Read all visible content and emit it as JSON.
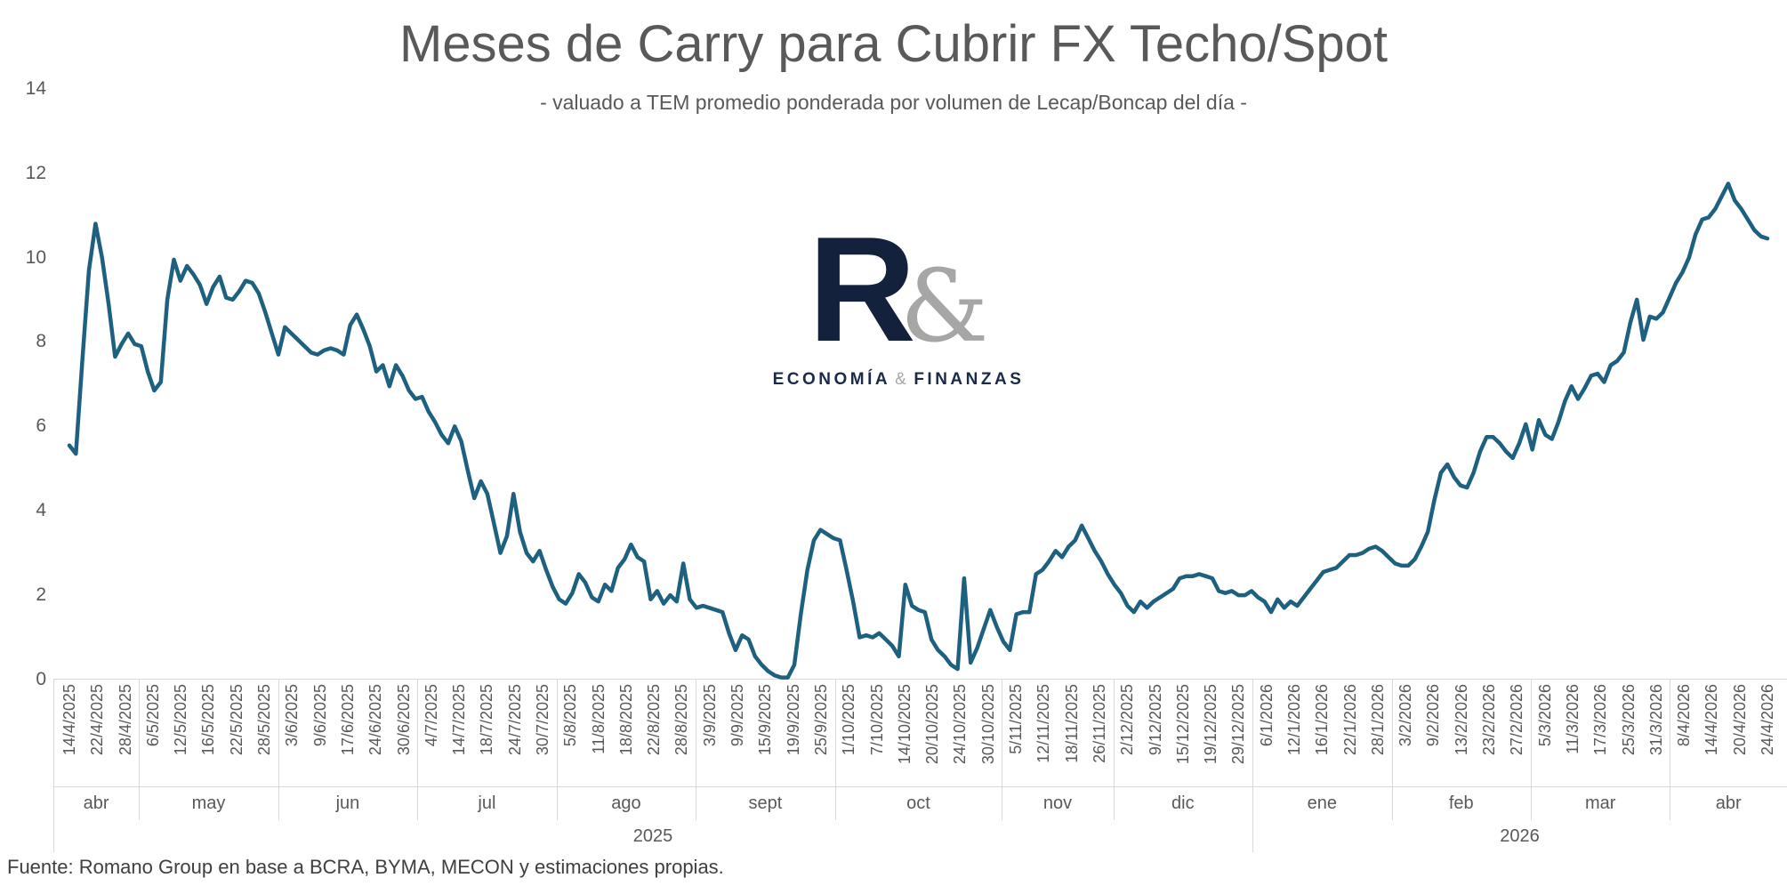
{
  "title": "Meses de Carry para Cubrir FX Techo/Spot",
  "subtitle": "- valuado a TEM promedio ponderada por volumen de Lecap/Boncap del día -",
  "source": "Fuente: Romano Group en base a BCRA, BYMA, MECON y estimaciones propias.",
  "logo": {
    "letter": "R",
    "ampersand": "&",
    "caption_left": "ECONOMÍA",
    "caption_amp": "&",
    "caption_right": "FINANZAS"
  },
  "colors": {
    "line": "#1e6080",
    "text": "#595959",
    "grid": "#d9d9d9",
    "logo_navy": "#14213d",
    "logo_gray": "#a6a6a6",
    "source_text": "#3f3f3f"
  },
  "chart_data": {
    "type": "line",
    "title": "Meses de Carry para Cubrir FX Techo/Spot",
    "xlabel": "",
    "ylabel": "",
    "ylim": [
      0,
      14
    ],
    "y_ticks": [
      0,
      2,
      4,
      6,
      8,
      10,
      12,
      14
    ],
    "grid": "off",
    "legend": "none",
    "x_tick_labels": [
      "14/4/2025",
      "22/4/2025",
      "28/4/2025",
      "6/5/2025",
      "12/5/2025",
      "16/5/2025",
      "22/5/2025",
      "28/5/2025",
      "3/6/2025",
      "9/6/2025",
      "17/6/2025",
      "24/6/2025",
      "30/6/2025",
      "4/7/2025",
      "14/7/2025",
      "18/7/2025",
      "24/7/2025",
      "30/7/2025",
      "5/8/2025",
      "11/8/2025",
      "18/8/2025",
      "22/8/2025",
      "28/8/2025",
      "3/9/2025",
      "9/9/2025",
      "15/9/2025",
      "19/9/2025",
      "25/9/2025",
      "1/10/2025",
      "7/10/2025",
      "14/10/2025",
      "20/10/2025",
      "24/10/2025",
      "30/10/2025",
      "5/11/2025",
      "12/11/2025",
      "18/11/2025",
      "26/11/2025",
      "2/12/2025",
      "9/12/2025",
      "15/12/2025",
      "19/12/2025",
      "29/12/2025",
      "6/1/2026",
      "12/1/2026",
      "16/1/2026",
      "22/1/2026",
      "28/1/2026",
      "3/2/2026",
      "9/2/2026",
      "13/2/2026",
      "23/2/2026",
      "27/2/2026",
      "5/3/2026",
      "11/3/2026",
      "17/3/2026",
      "25/3/2026",
      "31/3/2026",
      "8/4/2026",
      "14/4/2026",
      "20/4/2026",
      "24/4/2026"
    ],
    "month_groups": [
      {
        "label": "abr",
        "ticks": 3
      },
      {
        "label": "may",
        "ticks": 5
      },
      {
        "label": "jun",
        "ticks": 5
      },
      {
        "label": "jul",
        "ticks": 5
      },
      {
        "label": "ago",
        "ticks": 5
      },
      {
        "label": "sept",
        "ticks": 5
      },
      {
        "label": "oct",
        "ticks": 6
      },
      {
        "label": "nov",
        "ticks": 4
      },
      {
        "label": "dic",
        "ticks": 5
      },
      {
        "label": "ene",
        "ticks": 5
      },
      {
        "label": "feb",
        "ticks": 5
      },
      {
        "label": "mar",
        "ticks": 5
      },
      {
        "label": "abr",
        "ticks": 4
      }
    ],
    "year_groups": [
      {
        "label": "2025",
        "months": 9,
        "ticks": 43
      },
      {
        "label": "2026",
        "months": 4,
        "ticks": 19
      }
    ],
    "values": [
      5.55,
      5.35,
      7.6,
      9.7,
      10.8,
      10.0,
      8.9,
      7.65,
      7.95,
      8.2,
      7.95,
      7.9,
      7.3,
      6.85,
      7.05,
      9.0,
      9.95,
      9.45,
      9.8,
      9.6,
      9.35,
      8.9,
      9.3,
      9.55,
      9.05,
      9.0,
      9.2,
      9.45,
      9.4,
      9.15,
      8.7,
      8.2,
      7.7,
      8.35,
      8.2,
      8.05,
      7.9,
      7.75,
      7.7,
      7.8,
      7.85,
      7.8,
      7.7,
      8.4,
      8.65,
      8.3,
      7.9,
      7.3,
      7.45,
      6.95,
      7.45,
      7.2,
      6.85,
      6.65,
      6.7,
      6.35,
      6.1,
      5.8,
      5.6,
      6.0,
      5.65,
      4.95,
      4.3,
      4.7,
      4.4,
      3.7,
      3.0,
      3.4,
      4.4,
      3.5,
      3.0,
      2.8,
      3.05,
      2.6,
      2.2,
      1.9,
      1.8,
      2.05,
      2.5,
      2.3,
      1.95,
      1.85,
      2.25,
      2.1,
      2.65,
      2.85,
      3.2,
      2.9,
      2.8,
      1.9,
      2.1,
      1.8,
      2.0,
      1.85,
      2.75,
      1.9,
      1.7,
      1.75,
      1.7,
      1.65,
      1.6,
      1.1,
      0.7,
      1.05,
      0.95,
      0.55,
      0.35,
      0.2,
      0.1,
      0.05,
      0.05,
      0.35,
      1.55,
      2.6,
      3.3,
      3.55,
      3.45,
      3.35,
      3.3,
      2.6,
      1.85,
      1.0,
      1.05,
      1.0,
      1.1,
      0.95,
      0.8,
      0.55,
      2.25,
      1.75,
      1.65,
      1.6,
      0.95,
      0.7,
      0.55,
      0.35,
      0.25,
      2.4,
      0.4,
      0.75,
      1.2,
      1.65,
      1.25,
      0.9,
      0.7,
      1.55,
      1.6,
      1.6,
      2.5,
      2.6,
      2.8,
      3.05,
      2.9,
      3.15,
      3.3,
      3.65,
      3.35,
      3.05,
      2.8,
      2.5,
      2.25,
      2.05,
      1.75,
      1.6,
      1.85,
      1.7,
      1.85,
      1.95,
      2.05,
      2.15,
      2.4,
      2.45,
      2.45,
      2.5,
      2.45,
      2.4,
      2.1,
      2.05,
      2.1,
      2.0,
      2.0,
      2.1,
      1.95,
      1.85,
      1.6,
      1.9,
      1.7,
      1.85,
      1.75,
      1.95,
      2.15,
      2.35,
      2.55,
      2.6,
      2.65,
      2.8,
      2.95,
      2.95,
      3.0,
      3.1,
      3.15,
      3.05,
      2.9,
      2.75,
      2.7,
      2.7,
      2.85,
      3.15,
      3.5,
      4.25,
      4.9,
      5.1,
      4.8,
      4.6,
      4.55,
      4.9,
      5.4,
      5.75,
      5.75,
      5.6,
      5.4,
      5.25,
      5.6,
      6.05,
      5.45,
      6.15,
      5.8,
      5.7,
      6.1,
      6.6,
      6.95,
      6.65,
      6.9,
      7.2,
      7.25,
      7.05,
      7.45,
      7.55,
      7.75,
      8.45,
      9.0,
      8.05,
      8.6,
      8.55,
      8.7,
      9.05,
      9.4,
      9.65,
      10.0,
      10.55,
      10.9,
      10.95,
      11.15,
      11.45,
      11.75,
      11.35,
      11.15,
      10.9,
      10.65,
      10.5,
      10.45
    ]
  }
}
